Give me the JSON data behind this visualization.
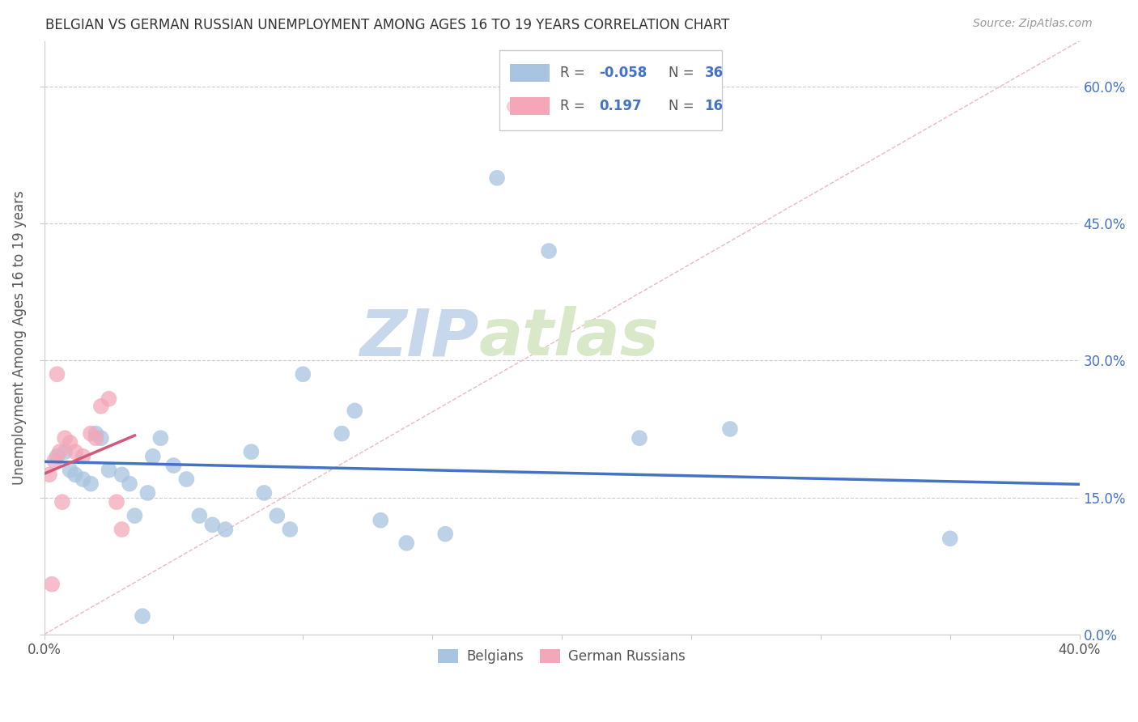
{
  "title": "BELGIAN VS GERMAN RUSSIAN UNEMPLOYMENT AMONG AGES 16 TO 19 YEARS CORRELATION CHART",
  "source": "Source: ZipAtlas.com",
  "ylabel": "Unemployment Among Ages 16 to 19 years",
  "xlim": [
    0.0,
    0.4
  ],
  "ylim": [
    0.0,
    0.65
  ],
  "belgian_R": -0.058,
  "belgian_N": 36,
  "german_russian_R": 0.197,
  "german_russian_N": 16,
  "belgian_color": "#a8c4e0",
  "german_russian_color": "#f4a7b9",
  "trend_line_belgian_color": "#4472c4",
  "trend_line_german_color": "#d05878",
  "diagonal_color": "#cccccc",
  "background_color": "#ffffff",
  "watermark_text": "ZIPatlas",
  "watermark_color": "#dce8f5",
  "legend_color": "#4472c4",
  "belgians_x": [
    0.005,
    0.008,
    0.01,
    0.012,
    0.015,
    0.018,
    0.02,
    0.022,
    0.025,
    0.03,
    0.033,
    0.035,
    0.04,
    0.042,
    0.045,
    0.05,
    0.055,
    0.06,
    0.065,
    0.07,
    0.08,
    0.085,
    0.09,
    0.095,
    0.1,
    0.115,
    0.12,
    0.13,
    0.14,
    0.155,
    0.175,
    0.195,
    0.23,
    0.265,
    0.35,
    0.038
  ],
  "belgians_y": [
    0.195,
    0.2,
    0.18,
    0.175,
    0.17,
    0.165,
    0.22,
    0.215,
    0.18,
    0.175,
    0.165,
    0.13,
    0.155,
    0.195,
    0.215,
    0.185,
    0.17,
    0.13,
    0.12,
    0.115,
    0.2,
    0.155,
    0.13,
    0.115,
    0.285,
    0.22,
    0.245,
    0.125,
    0.1,
    0.11,
    0.5,
    0.42,
    0.215,
    0.225,
    0.105,
    0.02
  ],
  "german_x": [
    0.002,
    0.004,
    0.005,
    0.006,
    0.008,
    0.01,
    0.012,
    0.015,
    0.018,
    0.02,
    0.022,
    0.025,
    0.028,
    0.03,
    0.003,
    0.007
  ],
  "german_y": [
    0.175,
    0.19,
    0.285,
    0.2,
    0.215,
    0.21,
    0.2,
    0.195,
    0.22,
    0.215,
    0.25,
    0.258,
    0.145,
    0.115,
    0.055,
    0.145
  ]
}
